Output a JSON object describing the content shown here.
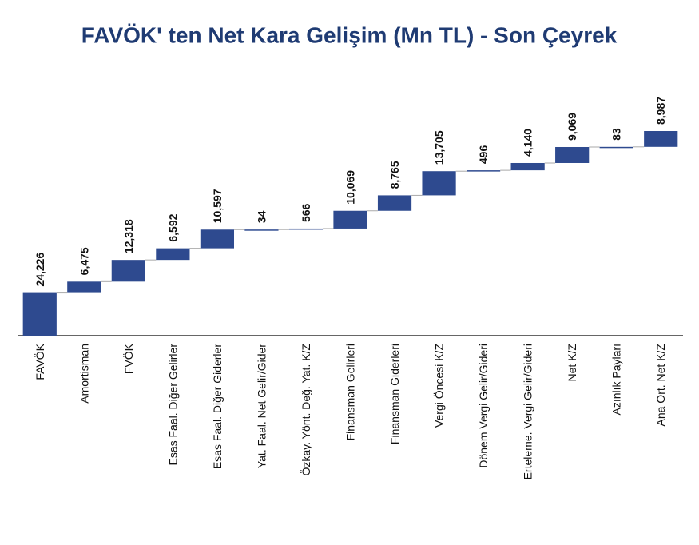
{
  "chart_data": {
    "type": "waterfall",
    "title": "FAVÖK' ten Net Kara Gelişim (Mn TL) - Son Çeyrek",
    "categories": [
      "FAVÖK",
      "Amortisman",
      "FVÖK",
      "Esas Faal. Diğer Gelirler",
      "Esas Faal. Diğer Giderler",
      "Yat. Faal. Net Gelir/Gider",
      "Özkay. Yönt. Değ. Yat. K/Z",
      "Finansman Gelirleri",
      "Finansman Giderleri",
      "Vergi Öncesi K/Z",
      "Dönem Vergi Gelir/Gideri",
      "Erteleme. Vergi Gelir/Gideri",
      "Net K/Z",
      "Azınlık Payları",
      "Ana Ort. Net K/Z"
    ],
    "values": [
      24226,
      6475,
      12318,
      6592,
      10597,
      34,
      566,
      10069,
      8765,
      13705,
      496,
      4140,
      9069,
      83,
      8987
    ],
    "value_labels": [
      "24,226",
      "6,475",
      "12,318",
      "6,592",
      "10,597",
      "34",
      "566",
      "10,069",
      "8,765",
      "13,705",
      "496",
      "4,140",
      "9,069",
      "83",
      "8,987"
    ],
    "color": "#2e4a8f"
  }
}
